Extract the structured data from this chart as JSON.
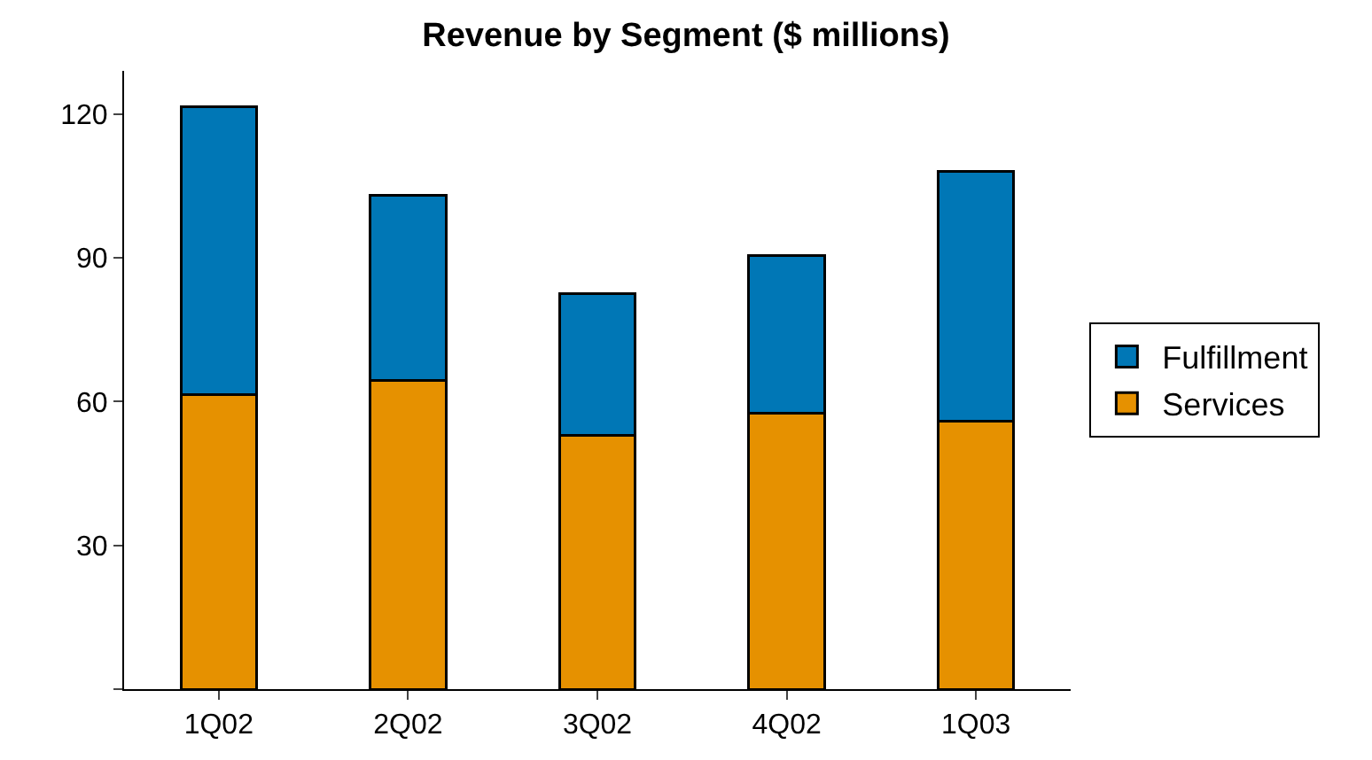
{
  "chart_data": {
    "type": "bar",
    "title": "Revenue by Segment ($ millions)",
    "categories": [
      "1Q02",
      "2Q02",
      "3Q02",
      "4Q02",
      "1Q03"
    ],
    "stacked": true,
    "series": [
      {
        "name": "Services",
        "color": "#e69100",
        "values": [
          61.5,
          64.5,
          53,
          57.5,
          56
        ]
      },
      {
        "name": "Fulfillment",
        "color": "#0077b6",
        "values": [
          60,
          38.5,
          29.5,
          33,
          52
        ]
      }
    ],
    "ylim": [
      0,
      129
    ],
    "yticks": [
      {
        "value": 0,
        "label": null
      },
      30,
      60,
      90,
      120
    ],
    "grid": false,
    "legend": "right"
  }
}
